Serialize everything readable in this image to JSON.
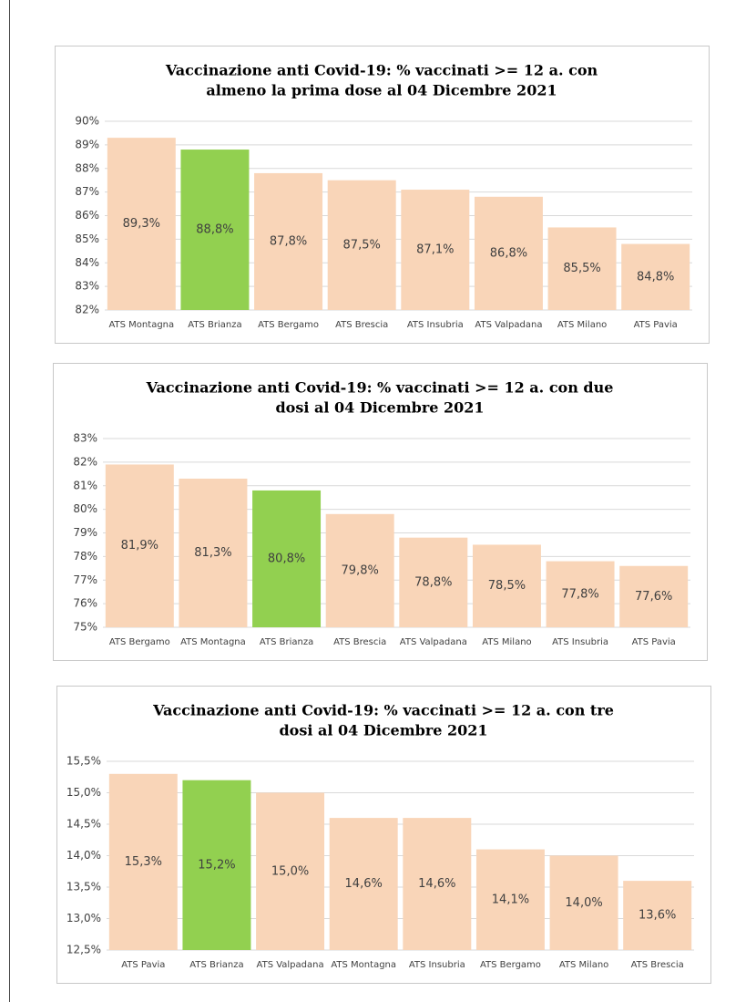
{
  "chart_data": [
    {
      "type": "bar",
      "title": [
        "Vaccinazione anti Covid-19: % vaccinati >= 12 a. con",
        "almeno la prima dose al 04 Dicembre 2021"
      ],
      "categories": [
        "ATS Montagna",
        "ATS Brianza",
        "ATS Bergamo",
        "ATS Brescia",
        "ATS Insubria",
        "ATS Valpadana",
        "ATS Milano",
        "ATS Pavia"
      ],
      "values": [
        89.3,
        88.8,
        87.8,
        87.5,
        87.1,
        86.8,
        85.5,
        84.8
      ],
      "value_labels": [
        "89,3%",
        "88,8%",
        "87,8%",
        "87,5%",
        "87,1%",
        "86,8%",
        "85,5%",
        "84,8%"
      ],
      "colors": [
        "#f9d5b8",
        "#92d050",
        "#f9d5b8",
        "#f9d5b8",
        "#f9d5b8",
        "#f9d5b8",
        "#f9d5b8",
        "#f9d5b8"
      ],
      "ylim": [
        82,
        90
      ],
      "yticks": [
        {
          "value": 82,
          "label": "82%"
        },
        {
          "value": 83,
          "label": "83%"
        },
        {
          "value": 84,
          "label": "84%"
        },
        {
          "value": 85,
          "label": "85%"
        },
        {
          "value": 86,
          "label": "86%"
        },
        {
          "value": 87,
          "label": "87%"
        },
        {
          "value": 88,
          "label": "88%"
        },
        {
          "value": 89,
          "label": "89%"
        },
        {
          "value": 90,
          "label": "90%"
        }
      ],
      "grid": true
    },
    {
      "type": "bar",
      "title": [
        "Vaccinazione anti Covid-19: % vaccinati >= 12 a. con due",
        "dosi al 04 Dicembre 2021"
      ],
      "categories": [
        "ATS Bergamo",
        "ATS Montagna",
        "ATS Brianza",
        "ATS Brescia",
        "ATS Valpadana",
        "ATS Milano",
        "ATS Insubria",
        "ATS Pavia"
      ],
      "values": [
        81.9,
        81.3,
        80.8,
        79.8,
        78.8,
        78.5,
        77.8,
        77.6
      ],
      "value_labels": [
        "81,9%",
        "81,3%",
        "80,8%",
        "79,8%",
        "78,8%",
        "78,5%",
        "77,8%",
        "77,6%"
      ],
      "colors": [
        "#f9d5b8",
        "#f9d5b8",
        "#92d050",
        "#f9d5b8",
        "#f9d5b8",
        "#f9d5b8",
        "#f9d5b8",
        "#f9d5b8"
      ],
      "ylim": [
        75,
        83
      ],
      "yticks": [
        {
          "value": 75,
          "label": "75%"
        },
        {
          "value": 76,
          "label": "76%"
        },
        {
          "value": 77,
          "label": "77%"
        },
        {
          "value": 78,
          "label": "78%"
        },
        {
          "value": 79,
          "label": "79%"
        },
        {
          "value": 80,
          "label": "80%"
        },
        {
          "value": 81,
          "label": "81%"
        },
        {
          "value": 82,
          "label": "82%"
        },
        {
          "value": 83,
          "label": "83%"
        }
      ],
      "grid": true
    },
    {
      "type": "bar",
      "title": [
        "Vaccinazione anti Covid-19: % vaccinati >= 12 a. con tre",
        "dosi al 04 Dicembre 2021"
      ],
      "categories": [
        "ATS Pavia",
        "ATS Brianza",
        "ATS Valpadana",
        "ATS Montagna",
        "ATS Insubria",
        "ATS Bergamo",
        "ATS Milano",
        "ATS Brescia"
      ],
      "values": [
        15.3,
        15.2,
        15.0,
        14.6,
        14.6,
        14.1,
        14.0,
        13.6
      ],
      "value_labels": [
        "15,3%",
        "15,2%",
        "15,0%",
        "14,6%",
        "14,6%",
        "14,1%",
        "14,0%",
        "13,6%"
      ],
      "colors": [
        "#f9d5b8",
        "#92d050",
        "#f9d5b8",
        "#f9d5b8",
        "#f9d5b8",
        "#f9d5b8",
        "#f9d5b8",
        "#f9d5b8"
      ],
      "ylim": [
        12.5,
        15.5
      ],
      "yticks": [
        {
          "value": 12.5,
          "label": "12,5%"
        },
        {
          "value": 13,
          "label": "13,0%"
        },
        {
          "value": 13.5,
          "label": "13,5%"
        },
        {
          "value": 14,
          "label": "14,0%"
        },
        {
          "value": 14.5,
          "label": "14,5%"
        },
        {
          "value": 15,
          "label": "15,0%"
        },
        {
          "value": 15.5,
          "label": "15,5%"
        }
      ],
      "grid": true
    }
  ]
}
